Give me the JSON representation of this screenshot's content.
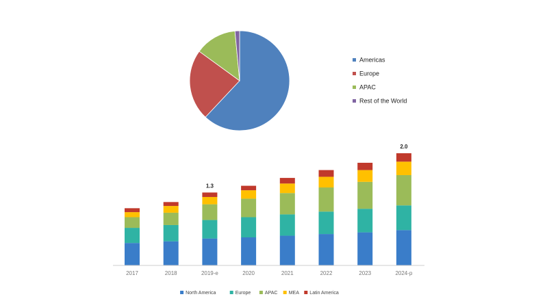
{
  "chart_data": [
    {
      "type": "pie",
      "categories": [
        "Americas",
        "Europe",
        "APAC",
        "Rest of the World"
      ],
      "values": [
        62,
        23,
        13.5,
        1.5
      ],
      "colors": [
        "#4f81bd",
        "#c0504d",
        "#9bbb59",
        "#8064a2"
      ],
      "legend": "right"
    },
    {
      "type": "bar",
      "stacked": true,
      "categories": [
        "2017",
        "2018",
        "2019-e",
        "2020",
        "2021",
        "2022",
        "2023",
        "2024-p"
      ],
      "series": [
        {
          "name": "North America",
          "color": "#3a7dc9",
          "values": [
            0.4,
            0.43,
            0.48,
            0.5,
            0.53,
            0.56,
            0.59,
            0.63
          ]
        },
        {
          "name": "Europe",
          "color": "#2fb3a4",
          "values": [
            0.27,
            0.29,
            0.33,
            0.36,
            0.38,
            0.4,
            0.42,
            0.44
          ]
        },
        {
          "name": "APAC",
          "color": "#9bbb59",
          "values": [
            0.19,
            0.22,
            0.28,
            0.33,
            0.38,
            0.43,
            0.48,
            0.54
          ]
        },
        {
          "name": "MEA",
          "color": "#ffc000",
          "values": [
            0.09,
            0.12,
            0.13,
            0.15,
            0.17,
            0.19,
            0.21,
            0.24
          ]
        },
        {
          "name": "Latin America",
          "color": "#c0392b",
          "values": [
            0.07,
            0.07,
            0.08,
            0.08,
            0.1,
            0.12,
            0.13,
            0.15
          ]
        }
      ],
      "total_labels": [
        null,
        null,
        "1.3",
        null,
        null,
        null,
        null,
        "2.0"
      ],
      "legend": "bottom"
    }
  ]
}
